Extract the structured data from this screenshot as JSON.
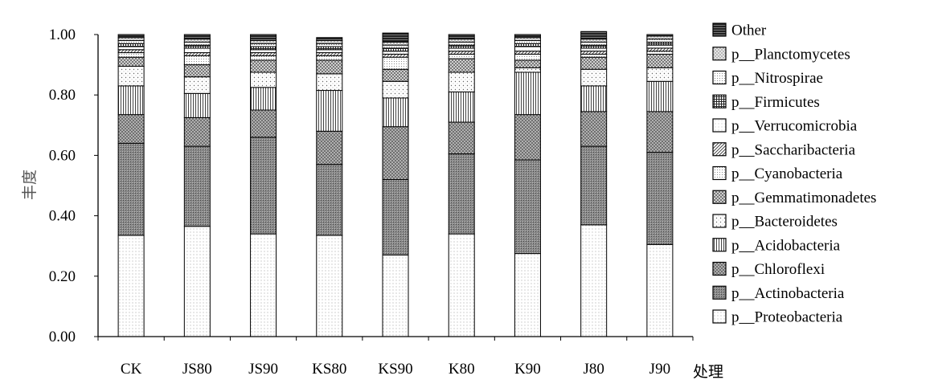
{
  "chart_data": {
    "type": "bar",
    "stacked": true,
    "xlabel": "处理",
    "ylabel": "丰度",
    "ylim": [
      0,
      1
    ],
    "yticks": [
      "0.00",
      "0.20",
      "0.40",
      "0.60",
      "0.80",
      "1.00"
    ],
    "grid": false,
    "legend_position": "right",
    "categories": [
      "CK",
      "JS80",
      "JS90",
      "KS80",
      "KS90",
      "K80",
      "K90",
      "J80",
      "J90"
    ],
    "series": [
      {
        "name": "p__Proteobacteria",
        "pattern": "dots",
        "values": [
          0.335,
          0.365,
          0.34,
          0.335,
          0.27,
          0.34,
          0.275,
          0.37,
          0.305
        ]
      },
      {
        "name": "p__Actinobacteria",
        "pattern": "dense",
        "values": [
          0.305,
          0.265,
          0.32,
          0.235,
          0.25,
          0.265,
          0.31,
          0.26,
          0.305
        ]
      },
      {
        "name": "p__Chloroflexi",
        "pattern": "cross",
        "values": [
          0.095,
          0.095,
          0.09,
          0.11,
          0.175,
          0.105,
          0.15,
          0.115,
          0.135
        ]
      },
      {
        "name": "p__Acidobacteria",
        "pattern": "vlines",
        "values": [
          0.095,
          0.08,
          0.075,
          0.135,
          0.095,
          0.1,
          0.14,
          0.085,
          0.1
        ]
      },
      {
        "name": "p__Bacteroidetes",
        "pattern": "sparse-dots",
        "values": [
          0.065,
          0.055,
          0.05,
          0.055,
          0.055,
          0.065,
          0.015,
          0.055,
          0.045
        ]
      },
      {
        "name": "p__Gemmatimonadetes",
        "pattern": "checker",
        "values": [
          0.03,
          0.04,
          0.04,
          0.045,
          0.04,
          0.045,
          0.025,
          0.04,
          0.045
        ]
      },
      {
        "name": "p__Cyanobacteria",
        "pattern": "fine-dots",
        "values": [
          0.015,
          0.03,
          0.015,
          0.015,
          0.04,
          0.015,
          0.02,
          0.01,
          0.01
        ]
      },
      {
        "name": "p__Saccharibacteria",
        "pattern": "diagonal",
        "values": [
          0.01,
          0.01,
          0.01,
          0.01,
          0.01,
          0.01,
          0.01,
          0.01,
          0.01
        ]
      },
      {
        "name": "p__Verrucomicrobia",
        "pattern": "light-dots",
        "values": [
          0.01,
          0.015,
          0.01,
          0.01,
          0.01,
          0.01,
          0.015,
          0.01,
          0.01
        ]
      },
      {
        "name": "p__Firmicutes",
        "pattern": "grid",
        "values": [
          0.01,
          0.01,
          0.01,
          0.01,
          0.01,
          0.01,
          0.01,
          0.01,
          0.01
        ]
      },
      {
        "name": "p__Nitrospirae",
        "pattern": "fine-dots",
        "values": [
          0.01,
          0.01,
          0.01,
          0.01,
          0.01,
          0.01,
          0.01,
          0.01,
          0.01
        ]
      },
      {
        "name": "p__Planctomycetes",
        "pattern": "light-cross",
        "values": [
          0.01,
          0.01,
          0.01,
          0.01,
          0.01,
          0.01,
          0.01,
          0.01,
          0.01
        ]
      },
      {
        "name": "Other",
        "pattern": "hstripes",
        "values": [
          0.01,
          0.015,
          0.02,
          0.01,
          0.03,
          0.015,
          0.01,
          0.025,
          0.005
        ]
      }
    ]
  }
}
